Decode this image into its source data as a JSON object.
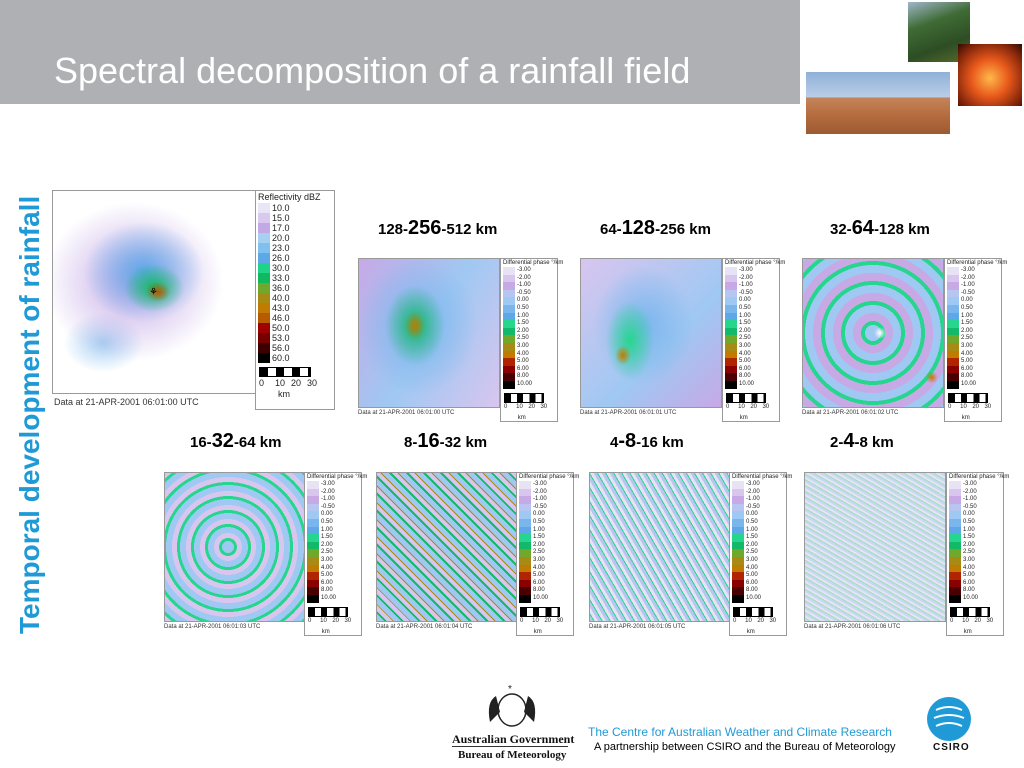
{
  "slide": {
    "title": "Spectral decomposition of a rainfall field",
    "vertical_label": "Temporal development of rainfall"
  },
  "legend_main": {
    "title": "Reflectivity dBZ",
    "values": [
      "10.0",
      "15.0",
      "17.0",
      "20.0",
      "23.0",
      "26.0",
      "30.0",
      "33.0",
      "36.0",
      "40.0",
      "43.0",
      "46.0",
      "50.0",
      "53.0",
      "56.0",
      "60.0"
    ],
    "colors": [
      "#e9e4f6",
      "#d9c9f0",
      "#c3a8e6",
      "#a5d0f2",
      "#7fc0ef",
      "#5ea8e8",
      "#1fd389",
      "#10b860",
      "#6fa82a",
      "#a88b14",
      "#c07c00",
      "#b85a00",
      "#a00000",
      "#760000",
      "#3c0000",
      "#000000"
    ],
    "scale_ticks": [
      "0",
      "10",
      "20",
      "30"
    ],
    "scale_unit": "km",
    "caption": "Data at 21-APR-2001 06:01:00 UTC"
  },
  "legend_phase": {
    "title": "Differential phase °/km",
    "values": [
      "-3.00",
      "-2.00",
      "-1.00",
      "-0.50",
      "0.00",
      "0.50",
      "1.00",
      "1.50",
      "2.00",
      "2.50",
      "3.00",
      "4.00",
      "5.00",
      "6.00",
      "8.00",
      "10.00"
    ],
    "colors": [
      "#e8e2f5",
      "#d8c6ef",
      "#c7a9e6",
      "#b6c6f0",
      "#9fc8f2",
      "#7ab6ee",
      "#5ea8e8",
      "#26d68f",
      "#12b968",
      "#6fa82a",
      "#a88b14",
      "#c07c00",
      "#b02400",
      "#8a0000",
      "#4a0000",
      "#000000"
    ],
    "scale_ticks": [
      "0",
      "10",
      "20",
      "30"
    ],
    "scale_unit": "km"
  },
  "panels": [
    {
      "pre": "128-",
      "big": "256",
      "post": "-512 km",
      "caption": "Data at 21-APR-2001 06:01:00 UTC"
    },
    {
      "pre": "64-",
      "big": "128",
      "post": "-256 km",
      "caption": "Data at 21-APR-2001 06:01:01 UTC"
    },
    {
      "pre": "32-",
      "big": "64",
      "post": "-128 km",
      "caption": "Data at 21-APR-2001 06:01:02 UTC"
    },
    {
      "pre": "16-",
      "big": "32",
      "post": "-64 km",
      "caption": "Data at 21-APR-2001 06:01:03 UTC"
    },
    {
      "pre": "8-",
      "big": "16",
      "post": "-32 km",
      "caption": "Data at 21-APR-2001 06:01:04 UTC"
    },
    {
      "pre": "4",
      "big": "-8",
      "post": "-16 km",
      "caption": "Data at 21-APR-2001 06:01:05 UTC"
    },
    {
      "pre": "2-",
      "big": "4",
      "post": "-8 km",
      "caption": "Data at 21-APR-2001 06:01:06 UTC"
    }
  ],
  "footer": {
    "gov_line1": "Australian Government",
    "gov_line2": "Bureau of Meteorology",
    "centre": "The Centre for Australian Weather and Climate Research",
    "partnership": "A partnership between CSIRO and the Bureau of Meteorology",
    "csiro": "CSIRO"
  },
  "colors": {
    "accent": "#1f9ad6",
    "title_bar": "#aeb0b3"
  }
}
